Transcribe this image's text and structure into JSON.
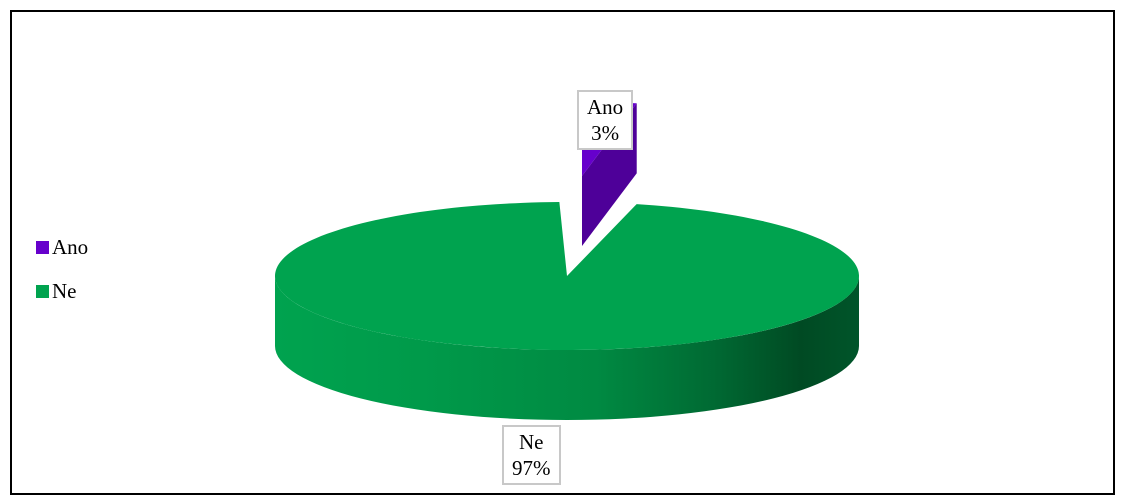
{
  "chart_data": {
    "type": "pie",
    "title": "",
    "categories": [
      "Ano",
      "Ne"
    ],
    "values": [
      3,
      97
    ],
    "labels": [
      "3%",
      "97%"
    ],
    "legend_position": "left",
    "colors": {
      "Ano": "#6600cc",
      "Ne": "#00a34f"
    },
    "three_d": true,
    "exploded_slice": "Ano"
  }
}
